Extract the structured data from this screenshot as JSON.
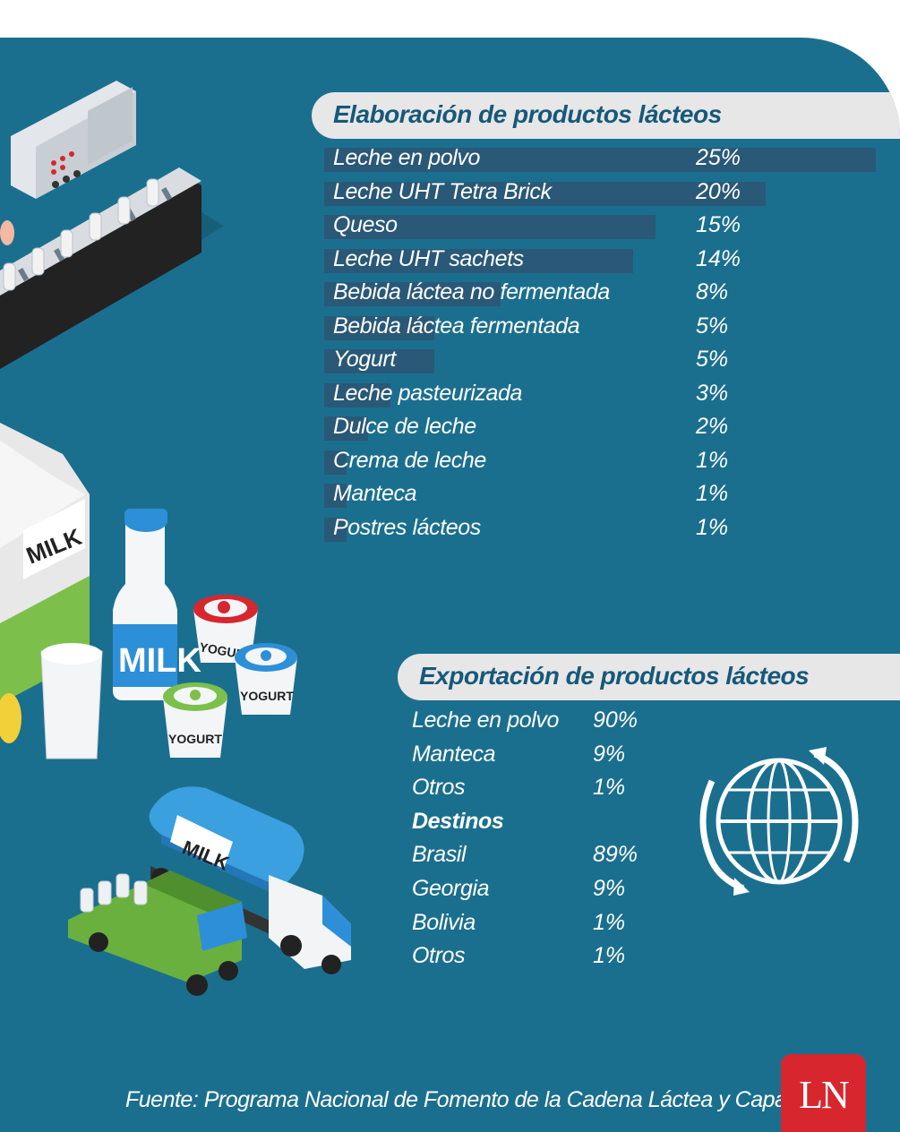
{
  "chart_data": [
    {
      "type": "bar",
      "title": "Elaboración de productos lácteos",
      "categories": [
        "Leche en polvo",
        "Leche UHT Tetra Brick",
        "Queso",
        "Leche UHT sachets",
        "Bebida láctea no fermentada",
        "Bebida láctea fermentada",
        "Yogurt",
        "Leche pasteurizada",
        "Dulce de leche",
        "Crema de leche",
        "Manteca",
        "Postres lácteos"
      ],
      "values": [
        25,
        20,
        15,
        14,
        8,
        5,
        5,
        3,
        2,
        1,
        1,
        1
      ],
      "value_labels": [
        "25%",
        "20%",
        "15%",
        "14%",
        "8%",
        "5%",
        "5%",
        "3%",
        "2%",
        "1%",
        "1%",
        "1%"
      ]
    },
    {
      "type": "table",
      "title": "Exportación de productos lácteos",
      "products": [
        {
          "name": "Leche en polvo",
          "value": 90,
          "label": "90%"
        },
        {
          "name": "Manteca",
          "value": 9,
          "label": "9%"
        },
        {
          "name": "Otros",
          "value": 1,
          "label": "1%"
        }
      ],
      "destinations_title": "Destinos",
      "destinations": [
        {
          "name": "Brasil",
          "value": 89,
          "label": "89%"
        },
        {
          "name": "Georgia",
          "value": 9,
          "label": "9%"
        },
        {
          "name": "Bolivia",
          "value": 1,
          "label": "1%"
        },
        {
          "name": "Otros",
          "value": 1,
          "label": "1%"
        }
      ]
    }
  ],
  "illustration": {
    "carton_label": "MILK",
    "bottle_label": "MILK",
    "yogurt_label": "YOGURT",
    "truck_label": "MILK"
  },
  "source": "Fuente: Programa Nacional de Fomento de la Cadena Láctea y Capainlac",
  "logo": "LN",
  "colors": {
    "background": "#1b6f8e",
    "bar": "#2a5877",
    "header": "#e7e7e7",
    "header_text": "#17587a",
    "logo": "#d7262e"
  }
}
